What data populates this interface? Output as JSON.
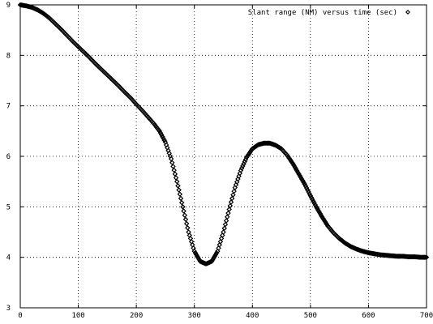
{
  "chart_data": {
    "type": "scatter",
    "title": "",
    "xlabel": "",
    "ylabel": "",
    "xlim": [
      0,
      700
    ],
    "ylim": [
      3,
      9
    ],
    "grid": true,
    "legend_position": "top-right",
    "x_ticks": [
      {
        "value": 0,
        "label": "0"
      },
      {
        "value": 100,
        "label": "100"
      },
      {
        "value": 200,
        "label": "200"
      },
      {
        "value": 300,
        "label": "300"
      },
      {
        "value": 400,
        "label": "400"
      },
      {
        "value": 500,
        "label": "500"
      },
      {
        "value": 600,
        "label": "600"
      },
      {
        "value": 700,
        "label": "700"
      }
    ],
    "y_ticks": [
      {
        "value": 3,
        "label": "3"
      },
      {
        "value": 4,
        "label": "4"
      },
      {
        "value": 5,
        "label": "5"
      },
      {
        "value": 6,
        "label": "6"
      },
      {
        "value": 7,
        "label": "7"
      },
      {
        "value": 8,
        "label": "8"
      },
      {
        "value": 9,
        "label": "9"
      }
    ],
    "series": [
      {
        "name": "Slant range (NM) versus time (sec)",
        "marker": "diamond",
        "color": "#000000",
        "x": [
          0,
          10,
          20,
          30,
          40,
          50,
          60,
          70,
          80,
          90,
          100,
          110,
          120,
          130,
          140,
          150,
          160,
          170,
          180,
          190,
          200,
          210,
          220,
          230,
          240,
          250,
          260,
          270,
          280,
          290,
          300,
          310,
          320,
          330,
          340,
          350,
          360,
          370,
          380,
          390,
          400,
          410,
          420,
          430,
          440,
          450,
          460,
          470,
          480,
          490,
          500,
          510,
          520,
          530,
          540,
          550,
          560,
          570,
          580,
          590,
          600,
          610,
          620,
          630,
          640,
          650,
          660,
          670,
          680,
          690,
          700
        ],
        "y": [
          9.0,
          8.98,
          8.95,
          8.9,
          8.83,
          8.74,
          8.63,
          8.52,
          8.4,
          8.28,
          8.17,
          8.06,
          7.95,
          7.83,
          7.72,
          7.61,
          7.5,
          7.39,
          7.27,
          7.16,
          7.03,
          6.91,
          6.78,
          6.65,
          6.5,
          6.28,
          5.95,
          5.5,
          5.0,
          4.5,
          4.12,
          3.92,
          3.87,
          3.92,
          4.12,
          4.5,
          4.95,
          5.38,
          5.72,
          5.98,
          6.15,
          6.23,
          6.26,
          6.26,
          6.22,
          6.15,
          6.02,
          5.85,
          5.65,
          5.45,
          5.22,
          5.0,
          4.8,
          4.62,
          4.48,
          4.37,
          4.28,
          4.21,
          4.16,
          4.12,
          4.09,
          4.07,
          4.05,
          4.04,
          4.03,
          4.02,
          4.02,
          4.01,
          4.01,
          4.0,
          4.0
        ]
      }
    ]
  }
}
